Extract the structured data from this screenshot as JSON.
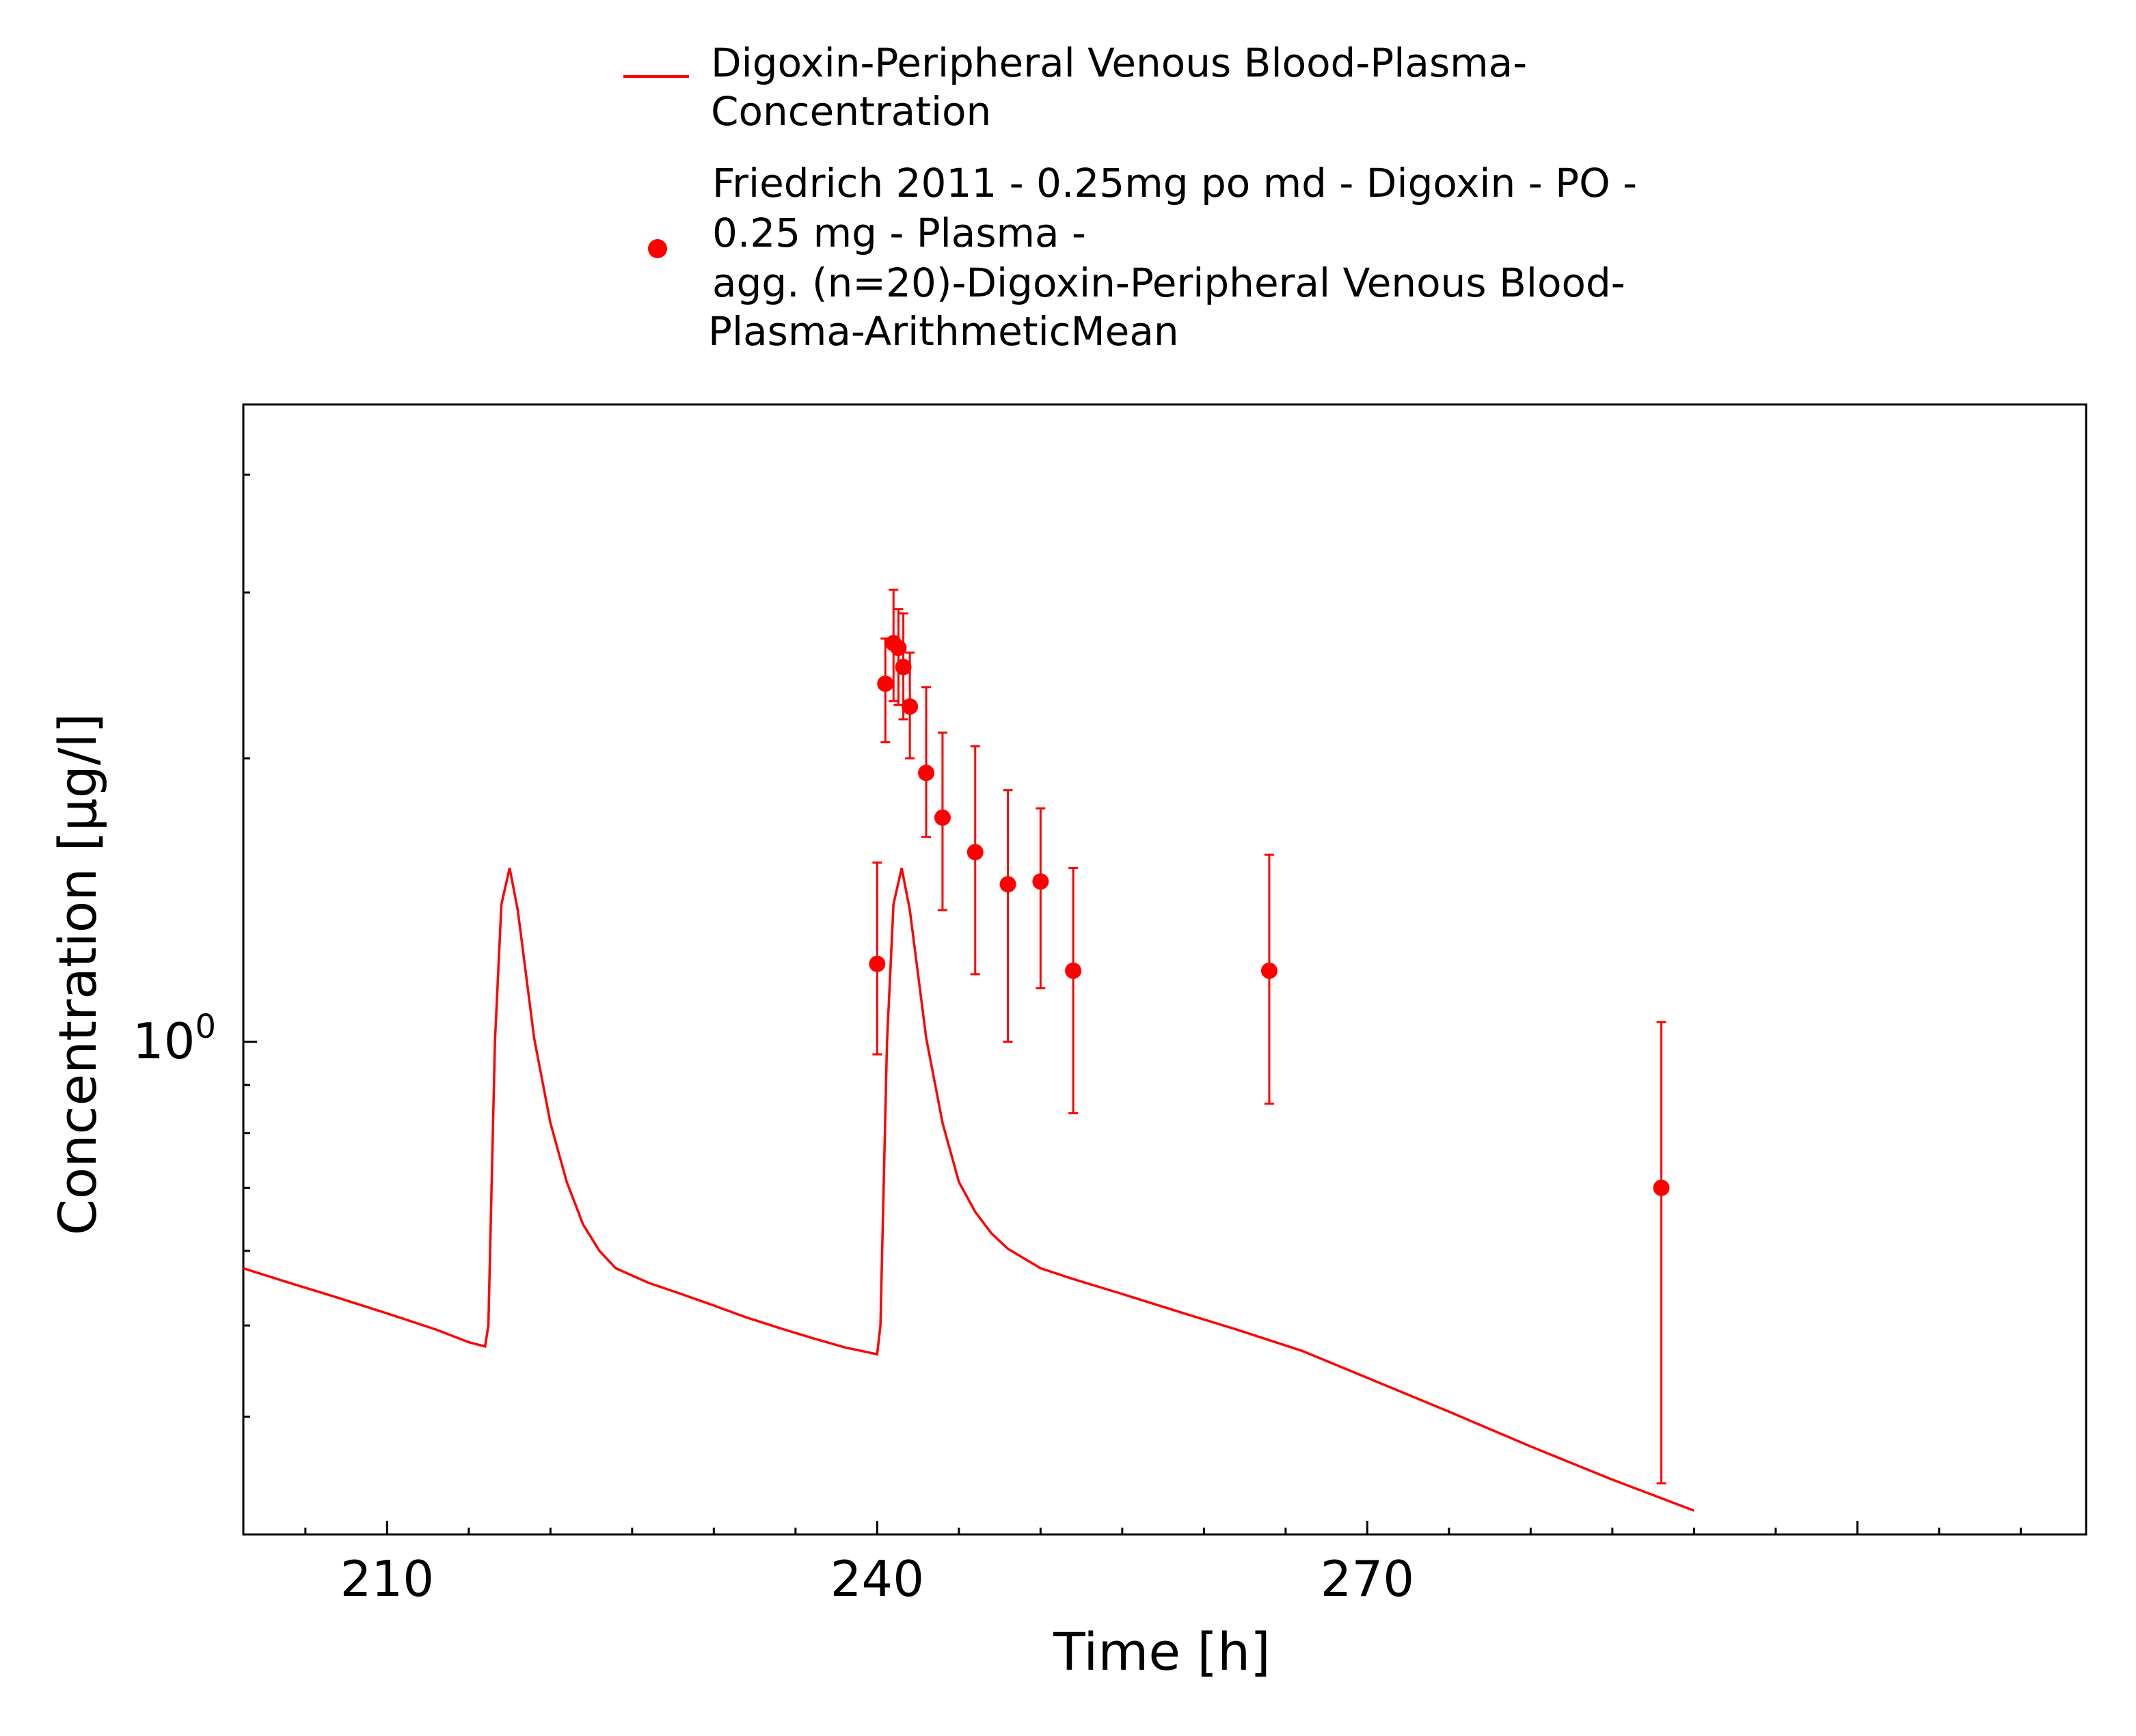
{
  "chart_data": {
    "type": "line",
    "title": "",
    "xlabel": "Time [h]",
    "ylabel": "Concentration [µg/l]",
    "x_ticks": [
      "210",
      "240",
      "270"
    ],
    "x_tick_values": [
      210,
      240,
      270
    ],
    "y_tick_base": "10",
    "y_tick_exponent": "0",
    "y_scale": "log",
    "xlim": [
      201.2,
      314
    ],
    "ylim": [
      0.3,
      4.75
    ],
    "grid": false,
    "legend_position": "top",
    "colors": {
      "series": "#ff0000",
      "axis": "#000000"
    },
    "legend": [
      {
        "marker": "line",
        "lines": [
          "Digoxin-Peripheral Venous Blood-Plasma-",
          "Concentration"
        ]
      },
      {
        "marker": "dot",
        "lines": [
          "Friedrich 2011 - 0.25mg po md - Digoxin - PO -",
          "0.25 mg - Plasma -",
          "agg. (n=20)-Digoxin-Peripheral Venous Blood-",
          "Plasma-ArithmeticMean"
        ]
      }
    ],
    "series": [
      {
        "name": "Digoxin-Peripheral Venous Blood-Plasma-Concentration",
        "kind": "line",
        "x": [
          201.2,
          204,
          207,
          210,
          213,
          215,
          216,
          216.2,
          216.6,
          217,
          217.5,
          218,
          218.5,
          219,
          220,
          221,
          222,
          223,
          224,
          226,
          228,
          230,
          232,
          234,
          236,
          238,
          239.5,
          240,
          240.2,
          240.6,
          241,
          241.5,
          242,
          242.5,
          243,
          244,
          245,
          246,
          247,
          248,
          250,
          252,
          255,
          258,
          262,
          266,
          270,
          275,
          280,
          285,
          290
        ],
        "y": [
          0.575,
          0.555,
          0.535,
          0.515,
          0.495,
          0.48,
          0.475,
          0.5,
          1.0,
          1.4,
          1.53,
          1.38,
          1.18,
          1.01,
          0.82,
          0.71,
          0.64,
          0.6,
          0.575,
          0.555,
          0.54,
          0.525,
          0.51,
          0.497,
          0.485,
          0.474,
          0.468,
          0.466,
          0.5,
          1.0,
          1.4,
          1.53,
          1.38,
          1.18,
          1.01,
          0.82,
          0.71,
          0.66,
          0.626,
          0.603,
          0.575,
          0.56,
          0.54,
          0.52,
          0.495,
          0.47,
          0.44,
          0.405,
          0.372,
          0.343,
          0.318
        ]
      },
      {
        "name": "Friedrich 2011 - 0.25mg po md - Digoxin - PO - 0.25 mg - Plasma - agg. (n=20)-Digoxin-Peripheral Venous Blood-Plasma-ArithmeticMean",
        "kind": "scatter",
        "x": [
          240,
          240.5,
          241,
          241.3,
          241.6,
          242,
          243,
          244,
          246,
          248,
          250,
          252,
          264,
          288
        ],
        "y": [
          1.21,
          2.4,
          2.65,
          2.62,
          2.5,
          2.27,
          1.93,
          1.73,
          1.59,
          1.47,
          1.48,
          1.19,
          1.19,
          0.7
        ],
        "y_low": [
          0.97,
          2.08,
          2.3,
          2.28,
          2.2,
          2.0,
          1.65,
          1.38,
          1.18,
          1.0,
          1.14,
          0.84,
          0.86,
          0.34
        ],
        "y_high": [
          1.55,
          2.68,
          3.02,
          2.88,
          2.85,
          2.59,
          2.38,
          2.13,
          2.06,
          1.85,
          1.77,
          1.53,
          1.58,
          1.05
        ]
      }
    ]
  }
}
